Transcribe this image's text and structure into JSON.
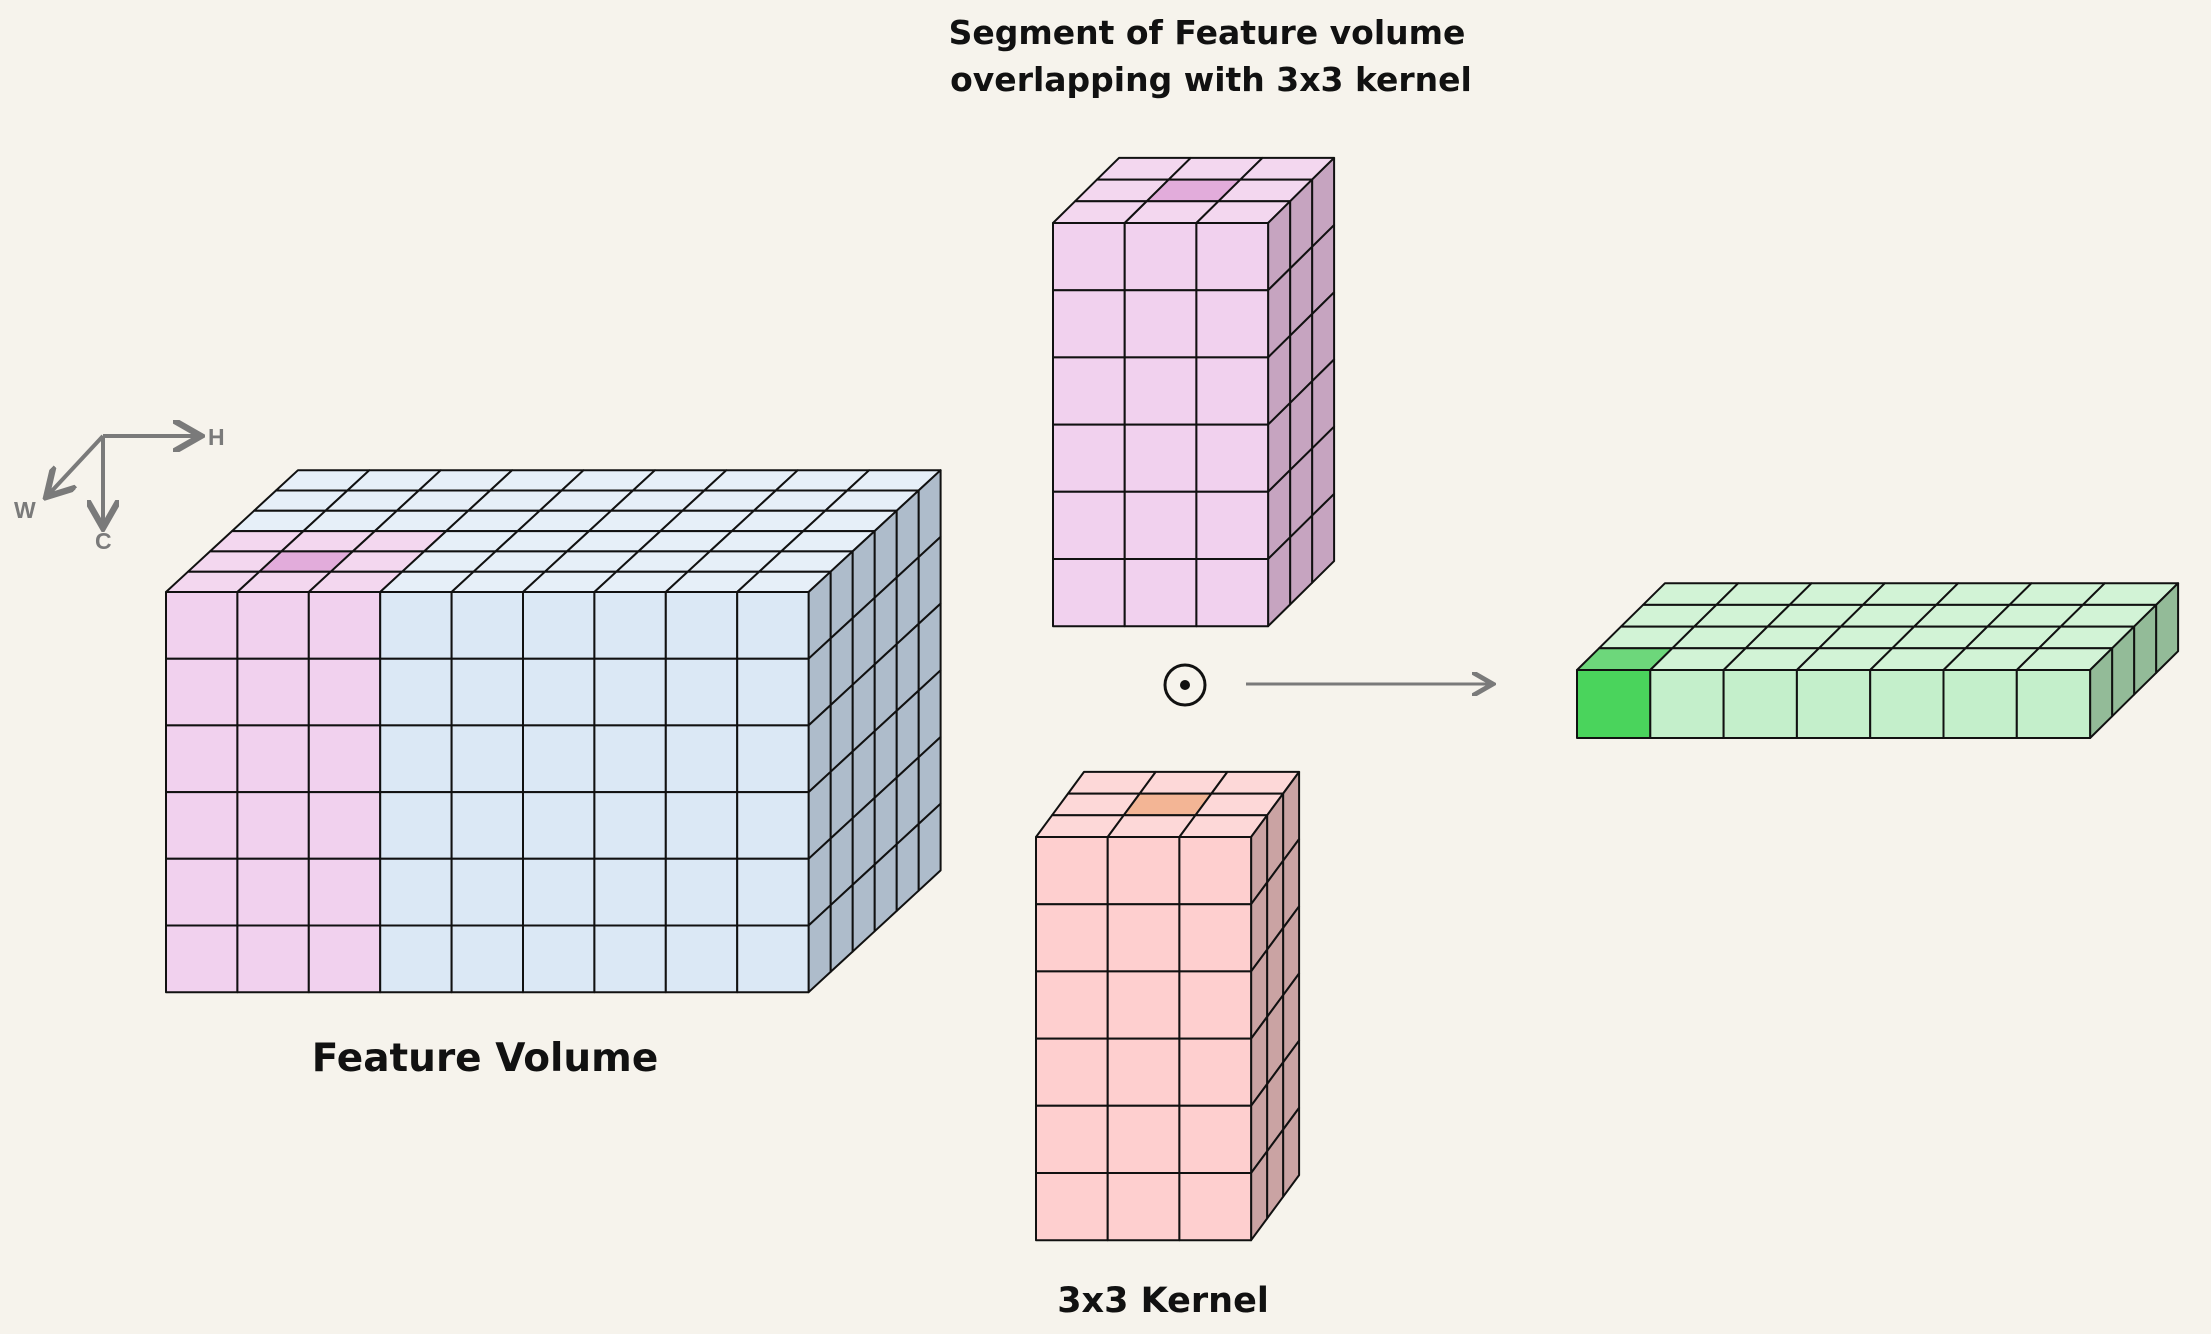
{
  "title": {
    "line1": "Segment of Feature volume",
    "line2": "overlapping with 3x3 kernel"
  },
  "labels": {
    "feature_volume": "Feature Volume",
    "kernel": "3x3 Kernel"
  },
  "axes": {
    "h": "H",
    "w": "W",
    "c": "C"
  },
  "operator": {
    "symbol": "⊙",
    "name": "elementwise product"
  },
  "blocks": {
    "feature_volume": {
      "cols": 9,
      "rows": 6,
      "depth": 6,
      "highlight_cols": 3,
      "colors": {
        "front": "#dbe8f5",
        "top": "#e6eff8",
        "side": "#aebccb",
        "hl_front": "#f1d1ee",
        "hl_top": "#f3d7ef",
        "hl_top_dark": "#e2acdb"
      }
    },
    "segment": {
      "cols": 3,
      "rows": 6,
      "depth": 3,
      "colors": {
        "front": "#f1d1ee",
        "top": "#f3d7ef",
        "side": "#c6a4c0",
        "hl_top": "#e2acdb"
      }
    },
    "kernel": {
      "cols": 3,
      "rows": 6,
      "depth": 3,
      "colors": {
        "front": "#fecfcf",
        "top": "#fdd8d8",
        "side": "#caa3a3",
        "hl_top": "#f3b595"
      }
    },
    "output": {
      "cols": 7,
      "rows": 1,
      "depth": 4,
      "colors": {
        "front": "#c4efcb",
        "top": "#d2f3d6",
        "side": "#93bb98",
        "hl_front": "#4ad45c",
        "hl_top": "#6dd77b"
      }
    }
  }
}
